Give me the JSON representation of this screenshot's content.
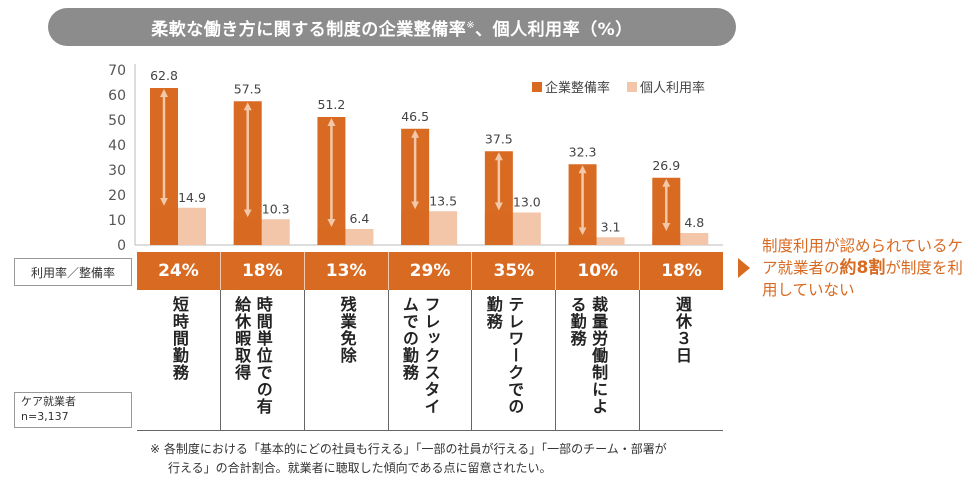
{
  "header": {
    "title": "柔軟な働き方に関する制度の企業整備率",
    "title_mark": "※",
    "title_suffix": "、個人利用率（%）"
  },
  "legend": {
    "series1": "企業整備率",
    "series2": "個人利用率"
  },
  "ratio_label": "利用率／整備率",
  "ratios": [
    "24%",
    "18%",
    "13%",
    "29%",
    "35%",
    "10%",
    "18%"
  ],
  "care_box": {
    "line1": "ケア就業者",
    "line2": "n=3,137"
  },
  "footnote": {
    "line1": "※ 各制度における「基本的にどの社員も行える」「一部の社員が行える」「一部のチーム・部署が",
    "line2": "行える」の合計割合。就業者に聴取した傾向である点に留意されたい。"
  },
  "callout": {
    "part1": "制度利用が認められているケア就業者の",
    "emphasis": "約8割",
    "part2": "が制度を利用していない"
  },
  "colors": {
    "series1": "#d86a22",
    "series2": "#f3c6aa",
    "arrow": "#f2c8a8",
    "ratio_bg": "#d86a22"
  },
  "chart_data": {
    "type": "bar",
    "title": "柔軟な働き方に関する制度の企業整備率※、個人利用率（%）",
    "categories": [
      "短時間勤務",
      "時間単位での有給休暇取得",
      "残業免除",
      "フレックスタイムでの勤務",
      "テレワークでの勤務",
      "裁量労働制による勤務",
      "週休３日"
    ],
    "series": [
      {
        "name": "企業整備率",
        "values": [
          62.8,
          57.5,
          51.2,
          46.5,
          37.5,
          32.3,
          26.9
        ]
      },
      {
        "name": "個人利用率",
        "values": [
          14.9,
          10.3,
          6.4,
          13.5,
          13.0,
          3.1,
          4.8
        ]
      }
    ],
    "yticks": [
      0,
      10,
      20,
      30,
      40,
      50,
      60,
      70
    ],
    "ylim": [
      0,
      70
    ],
    "legend_position": "top-right",
    "grid": false
  }
}
